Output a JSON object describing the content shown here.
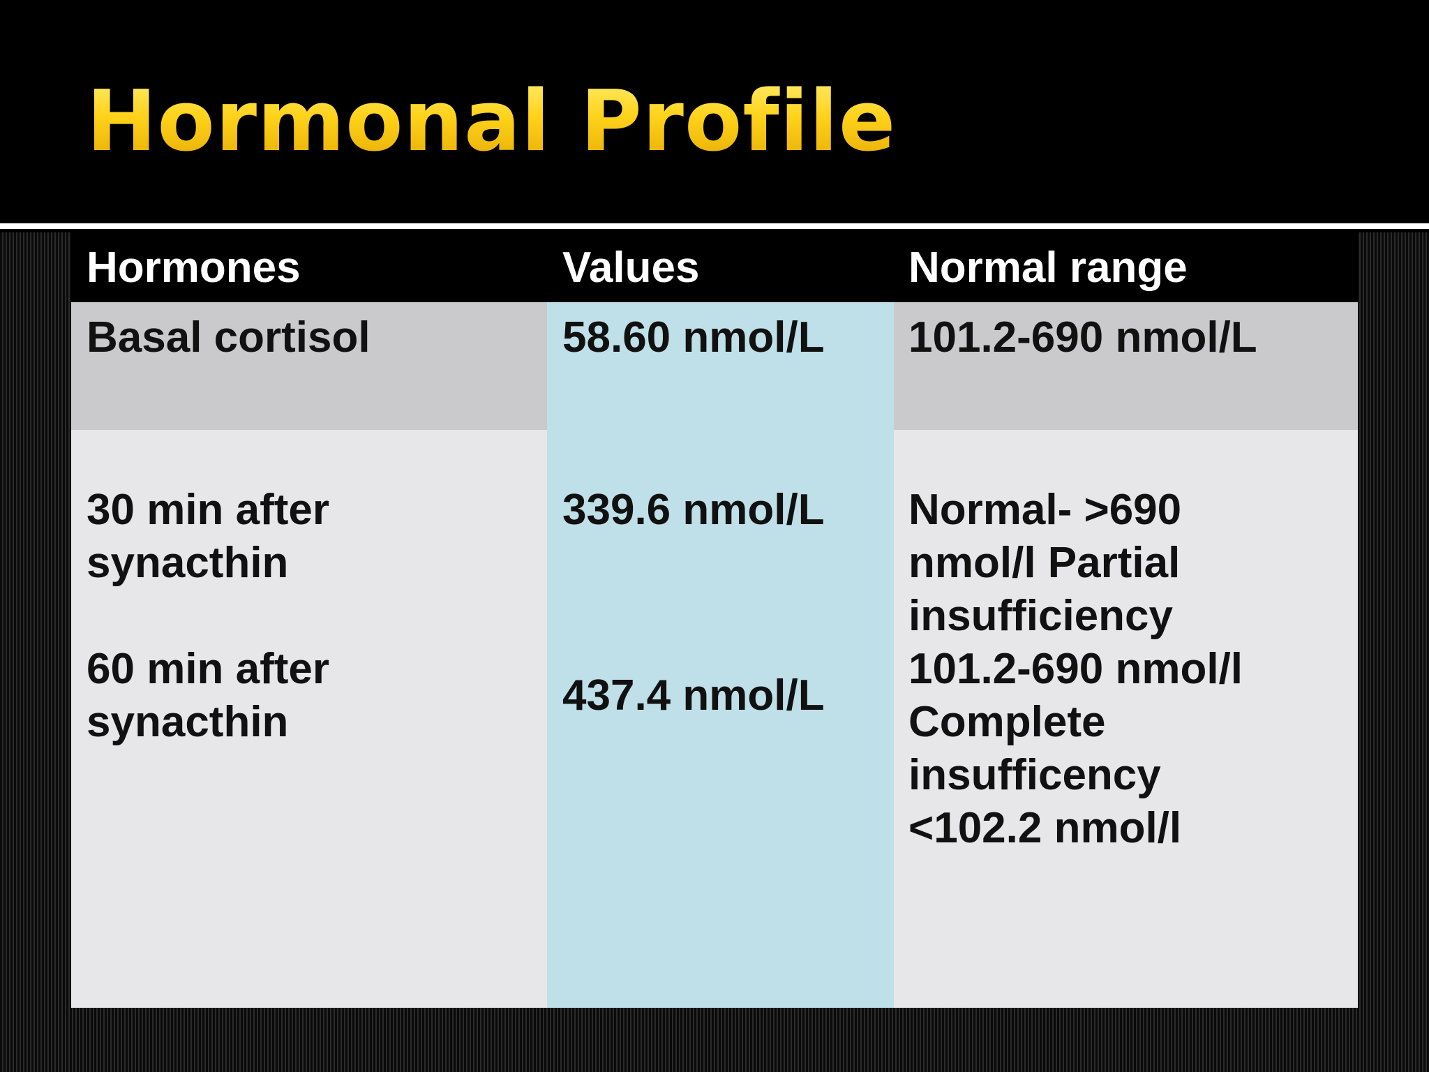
{
  "slide": {
    "title": "Hormonal Profile"
  },
  "table": {
    "headers": [
      "Hormones",
      "Values",
      "Normal range"
    ],
    "rows": [
      {
        "hormone": "Basal cortisol",
        "value": "58.60 nmol/L",
        "normal_range": "101.2-690 nmol/L"
      },
      {
        "hormone": "30 min after synacthin",
        "value": "339.6 nmol/L",
        "normal_range": "Normal- >690 nmol/l Partial insufficiency 101.2-690 nmol/l Complete insufficency <102.2 nmol/l"
      },
      {
        "hormone": "60 min after synacthin",
        "value": "437.4 nmol/L",
        "normal_range": ""
      }
    ]
  },
  "colors": {
    "title_gold": "#ffd21a",
    "header_bg": "#000000",
    "band_gray": "#cacacd",
    "body_light": "#e7e6e9",
    "values_blue": "#bfe0e8"
  }
}
